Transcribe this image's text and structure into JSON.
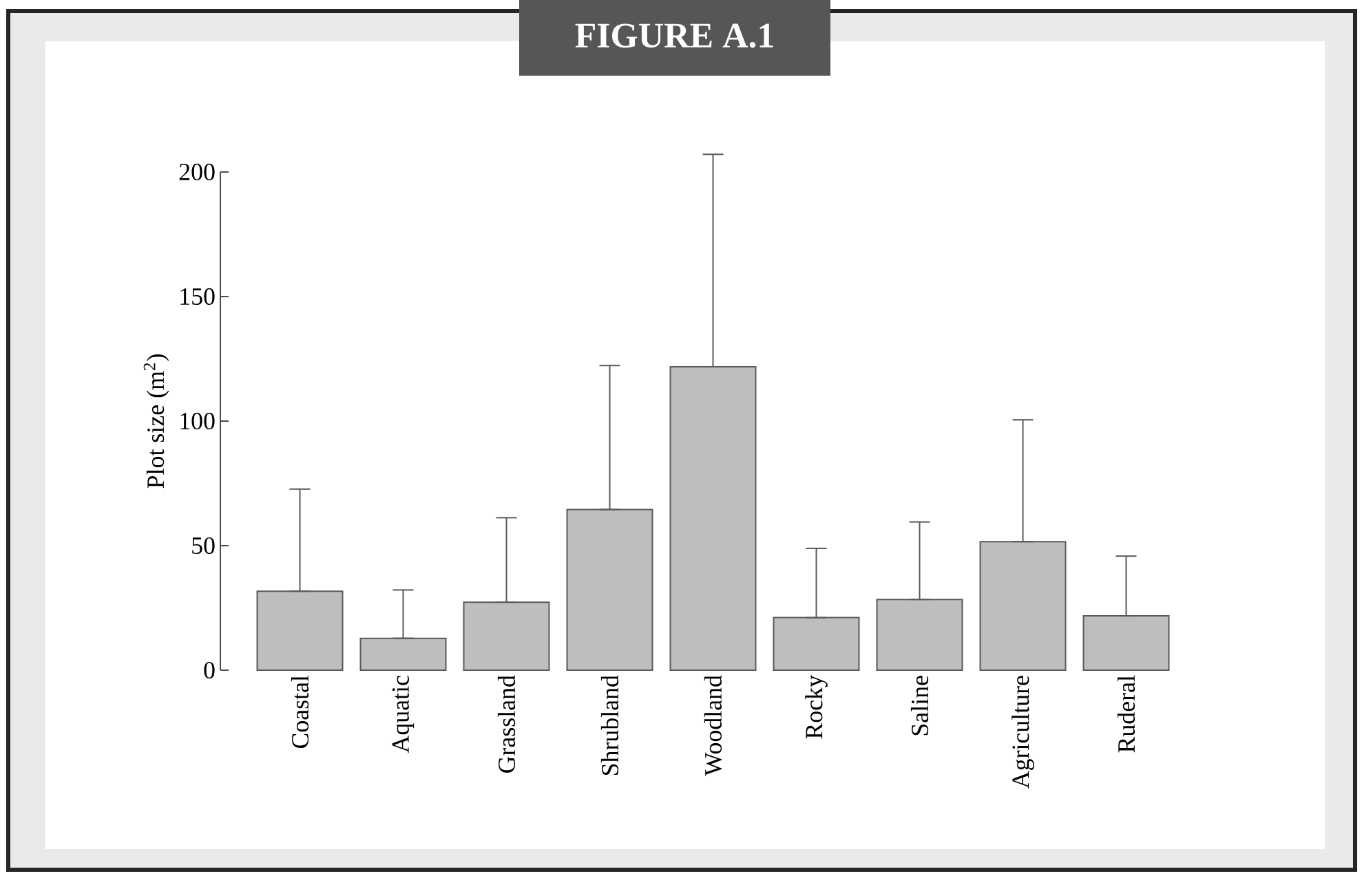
{
  "chart_data": {
    "type": "bar",
    "title": "FIGURE A.1",
    "ylabel": "Plot size (m$^{2}$)",
    "categories": [
      "Coastal",
      "Aquatic",
      "Grassland",
      "Shrubland",
      "Woodland",
      "Rocky",
      "Saline",
      "Agriculture",
      "Ruderal"
    ],
    "values": [
      31.7,
      12.8,
      27.3,
      64.5,
      121.8,
      21.1,
      28.4,
      51.6,
      21.8
    ],
    "errors": [
      [
        31.7,
        72.7
      ],
      [
        12.8,
        32.2
      ],
      [
        27.3,
        61.2
      ],
      [
        64.5,
        122.3
      ],
      [
        121.8,
        207.1
      ],
      [
        21.1,
        48.9
      ],
      [
        28.4,
        59.5
      ],
      [
        51.6,
        100.5
      ],
      [
        21.8,
        45.8
      ]
    ],
    "color": "#bebebe",
    "ylim": [
      0,
      200
    ],
    "yticks": [
      0,
      50,
      100,
      150,
      200
    ]
  }
}
